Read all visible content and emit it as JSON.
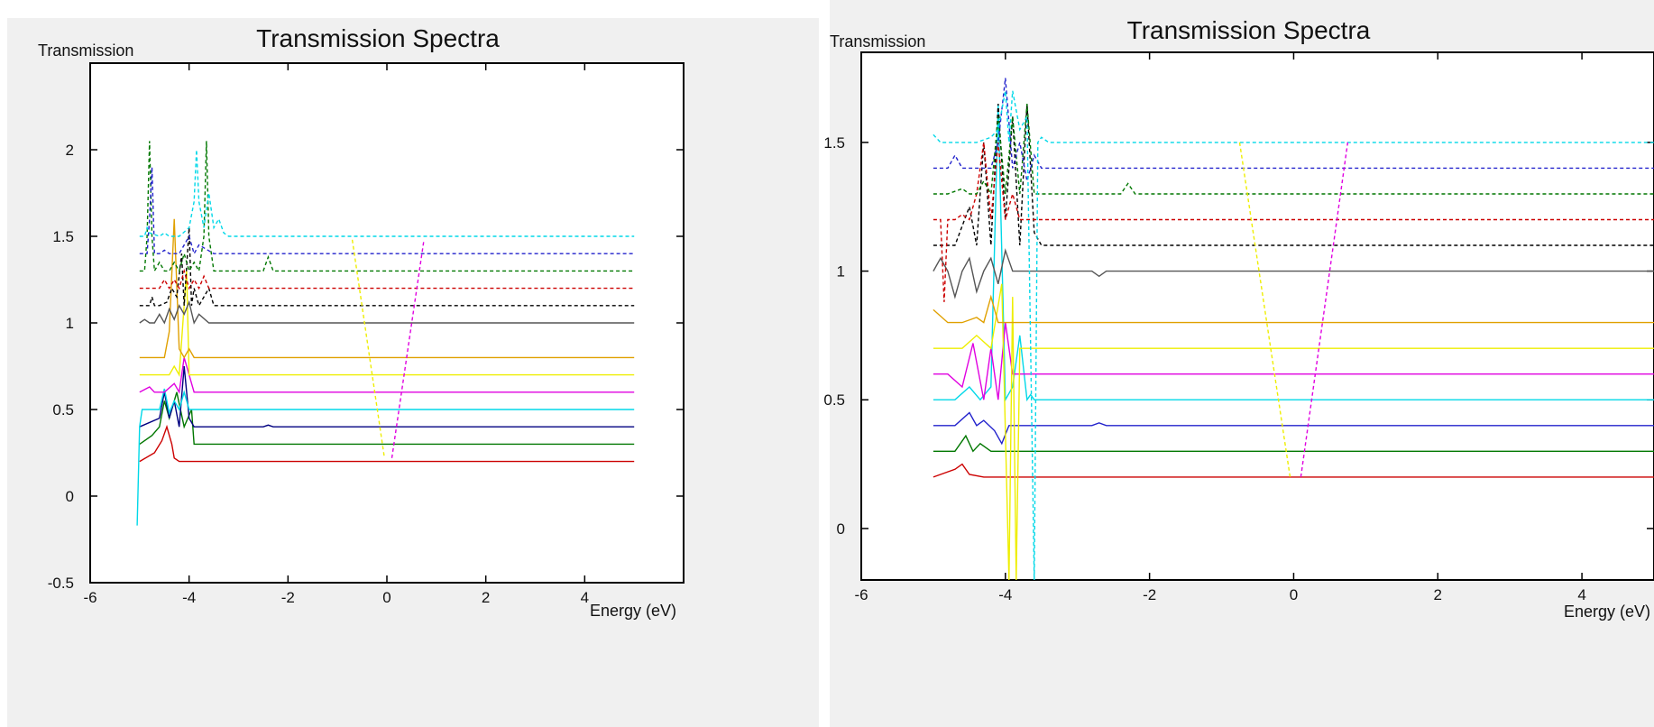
{
  "chart_data": [
    {
      "type": "line",
      "title": "Transmission Spectra",
      "ylabel": "Transmission",
      "xlabel": "Energy (eV)",
      "xlim": [
        -6,
        6
      ],
      "ylim": [
        -0.5,
        2.5
      ],
      "xticks": [
        -6,
        -4,
        -2,
        0,
        2,
        4
      ],
      "yticks": [
        -0.5,
        0,
        0.5,
        1,
        1.5,
        2
      ],
      "xtick_labels": [
        "-6",
        "-4",
        "-2",
        "0",
        "2",
        "4"
      ],
      "ytick_labels": [
        "-0.5",
        "0",
        "0.5",
        "1",
        "1.5",
        "2"
      ],
      "series": [
        {
          "color": "#cc0000",
          "dashed": false,
          "x": [
            -5.0,
            -4.7,
            -4.55,
            -4.45,
            -4.35,
            -4.3,
            -4.2,
            5.0
          ],
          "y": [
            0.2,
            0.25,
            0.32,
            0.4,
            0.3,
            0.22,
            0.2,
            0.2
          ]
        },
        {
          "color": "#007700",
          "dashed": false,
          "x": [
            -5.0,
            -4.75,
            -4.6,
            -4.5,
            -4.4,
            -4.25,
            -4.1,
            -3.95,
            -3.9,
            5.0
          ],
          "y": [
            0.3,
            0.35,
            0.4,
            0.55,
            0.45,
            0.6,
            0.4,
            0.5,
            0.3,
            0.3
          ]
        },
        {
          "color": "#000080",
          "dashed": false,
          "x": [
            -5.0,
            -4.6,
            -4.5,
            -4.4,
            -4.3,
            -4.2,
            -4.1,
            -4.0,
            -3.9,
            -2.5,
            -2.4,
            -2.3,
            5.0
          ],
          "y": [
            0.4,
            0.45,
            0.6,
            0.45,
            0.55,
            0.4,
            0.75,
            0.45,
            0.4,
            0.4,
            0.41,
            0.4,
            0.4
          ]
        },
        {
          "color": "#00d8e8",
          "dashed": false,
          "x": [
            -5.05,
            -5.0,
            -4.95,
            -4.6,
            -4.5,
            -4.4,
            -4.3,
            -4.2,
            -4.1,
            -4.0,
            -3.9,
            -3.85,
            5.0
          ],
          "y": [
            -0.17,
            0.4,
            0.5,
            0.5,
            0.62,
            0.48,
            0.55,
            0.5,
            0.6,
            0.5,
            0.5,
            0.5,
            0.5
          ]
        },
        {
          "color": "#e000e0",
          "dashed": false,
          "x": [
            -5.0,
            -4.8,
            -4.7,
            -4.5,
            -4.3,
            -4.2,
            -4.1,
            -3.9,
            5.0
          ],
          "y": [
            0.6,
            0.63,
            0.6,
            0.6,
            0.65,
            0.6,
            0.8,
            0.6,
            0.6
          ]
        },
        {
          "color": "#eeee00",
          "dashed": false,
          "x": [
            -5.0,
            -4.4,
            -4.3,
            -4.2,
            -4.05,
            -4.0,
            -3.95,
            5.0
          ],
          "y": [
            0.7,
            0.7,
            0.75,
            0.7,
            1.3,
            0.7,
            0.7,
            0.7
          ]
        },
        {
          "color": "#e0a000",
          "dashed": false,
          "x": [
            -5.0,
            -4.5,
            -4.4,
            -4.3,
            -4.2,
            -4.1,
            -4.0,
            -3.9,
            5.0
          ],
          "y": [
            0.8,
            0.8,
            0.95,
            1.6,
            0.85,
            0.8,
            0.85,
            0.8,
            0.8
          ]
        },
        {
          "color": "#555555",
          "dashed": false,
          "x": [
            -5.0,
            -4.9,
            -4.8,
            -4.7,
            -4.6,
            -4.5,
            -4.4,
            -4.3,
            -4.2,
            -4.1,
            -4.0,
            -3.9,
            -3.8,
            -3.6,
            -2.5,
            5.0
          ],
          "y": [
            1.0,
            1.02,
            1.0,
            1.0,
            1.05,
            1.0,
            1.08,
            1.02,
            1.1,
            1.05,
            1.12,
            1.0,
            1.05,
            1.0,
            1.0,
            1.0
          ]
        },
        {
          "color": "#000000",
          "dashed": true,
          "x": [
            -5.0,
            -4.8,
            -4.75,
            -4.7,
            -4.6,
            -4.45,
            -4.35,
            -4.25,
            -4.15,
            -4.1,
            -4.0,
            -3.95,
            -3.9,
            -3.8,
            -3.7,
            -3.6,
            -3.5,
            -3.4,
            5.0
          ],
          "y": [
            1.1,
            1.1,
            1.15,
            1.1,
            1.1,
            1.12,
            1.2,
            1.15,
            1.4,
            1.1,
            1.55,
            1.1,
            1.2,
            1.1,
            1.15,
            1.2,
            1.1,
            1.1,
            1.1
          ]
        },
        {
          "color": "#cc0000",
          "dashed": true,
          "x": [
            -5.0,
            -4.6,
            -4.5,
            -4.4,
            -4.3,
            -4.2,
            -4.1,
            -4.0,
            -3.9,
            -3.8,
            -3.7,
            -3.6,
            -3.5,
            5.0
          ],
          "y": [
            1.2,
            1.2,
            1.25,
            1.2,
            1.25,
            1.2,
            1.3,
            1.2,
            1.25,
            1.2,
            1.27,
            1.2,
            1.2,
            1.2
          ]
        },
        {
          "color": "#007700",
          "dashed": true,
          "x": [
            -5.0,
            -4.9,
            -4.85,
            -4.8,
            -4.75,
            -4.7,
            -4.6,
            -4.5,
            -4.4,
            -4.3,
            -4.2,
            -4.1,
            -4.0,
            -3.9,
            -3.8,
            -3.7,
            -3.65,
            -3.6,
            -3.5,
            -2.5,
            -2.4,
            -2.3,
            5.0
          ],
          "y": [
            1.3,
            1.3,
            1.5,
            2.05,
            1.5,
            1.3,
            1.35,
            1.3,
            1.3,
            1.35,
            1.3,
            1.4,
            1.3,
            1.35,
            1.3,
            1.5,
            2.05,
            1.5,
            1.3,
            1.3,
            1.38,
            1.3,
            1.3
          ]
        },
        {
          "color": "#2222cc",
          "dashed": true,
          "x": [
            -5.0,
            -4.85,
            -4.8,
            -4.75,
            -4.7,
            -4.6,
            -4.5,
            -4.4,
            -4.2,
            -4.1,
            -4.0,
            -3.9,
            -3.8,
            -3.5,
            5.0
          ],
          "y": [
            1.4,
            1.4,
            1.6,
            1.9,
            1.4,
            1.4,
            1.42,
            1.4,
            1.4,
            1.45,
            1.5,
            1.4,
            1.45,
            1.4,
            1.4
          ]
        },
        {
          "color": "#00d8e8",
          "dashed": true,
          "x": [
            -5.0,
            -4.9,
            -4.85,
            -4.8,
            -4.6,
            -4.5,
            -4.4,
            -4.2,
            -4.0,
            -3.9,
            -3.85,
            -3.8,
            -3.7,
            -3.6,
            -3.5,
            -3.4,
            -3.3,
            -3.2,
            5.0
          ],
          "y": [
            1.5,
            1.5,
            1.55,
            1.52,
            1.5,
            1.52,
            1.5,
            1.5,
            1.55,
            1.7,
            2.0,
            1.7,
            1.55,
            1.75,
            1.55,
            1.6,
            1.52,
            1.5,
            1.5
          ]
        },
        {
          "color": "#eeee00",
          "dashed": true,
          "x": [
            -0.7,
            -0.05
          ],
          "y": [
            1.48,
            0.22
          ]
        },
        {
          "color": "#e000e0",
          "dashed": true,
          "x": [
            0.1,
            0.75
          ],
          "y": [
            0.22,
            1.48
          ]
        }
      ]
    },
    {
      "type": "line",
      "title": "Transmission Spectra",
      "ylabel": "Transmission",
      "xlabel": "Energy (eV)",
      "xlim": [
        -6,
        5
      ],
      "ylim": [
        -0.2,
        1.85
      ],
      "xticks": [
        -6,
        -4,
        -2,
        0,
        2,
        4
      ],
      "yticks": [
        0,
        0.5,
        1,
        1.5
      ],
      "xtick_labels": [
        "-6",
        "-4",
        "-2",
        "0",
        "2",
        "4"
      ],
      "ytick_labels": [
        "0",
        "0.5",
        "1",
        "1.5"
      ],
      "series": [
        {
          "color": "#cc0000",
          "dashed": false,
          "x": [
            -5.0,
            -4.7,
            -4.6,
            -4.5,
            -4.3,
            -4.2,
            5.0
          ],
          "y": [
            0.2,
            0.23,
            0.25,
            0.21,
            0.2,
            0.2,
            0.2
          ]
        },
        {
          "color": "#007700",
          "dashed": false,
          "x": [
            -5.0,
            -4.7,
            -4.55,
            -4.45,
            -4.35,
            -4.2,
            -4.0,
            -3.9,
            5.0
          ],
          "y": [
            0.3,
            0.3,
            0.36,
            0.3,
            0.33,
            0.3,
            0.3,
            0.3,
            0.3
          ]
        },
        {
          "color": "#2222cc",
          "dashed": false,
          "x": [
            -5.0,
            -4.7,
            -4.5,
            -4.4,
            -4.3,
            -4.15,
            -4.05,
            -3.95,
            -3.85,
            -2.8,
            -2.7,
            -2.6,
            5.0
          ],
          "y": [
            0.4,
            0.4,
            0.45,
            0.4,
            0.42,
            0.38,
            0.33,
            0.4,
            0.4,
            0.4,
            0.41,
            0.4,
            0.4
          ]
        },
        {
          "color": "#00d8e8",
          "dashed": false,
          "x": [
            -5.0,
            -4.7,
            -4.5,
            -4.35,
            -4.2,
            -4.1,
            -4.0,
            -3.9,
            -3.8,
            -3.7,
            -3.65,
            -3.6,
            5.0
          ],
          "y": [
            0.5,
            0.5,
            0.55,
            0.5,
            0.55,
            1.65,
            0.5,
            0.55,
            0.75,
            0.5,
            0.52,
            0.5,
            0.5
          ]
        },
        {
          "color": "#e000e0",
          "dashed": false,
          "x": [
            -5.0,
            -4.8,
            -4.6,
            -4.45,
            -4.3,
            -4.2,
            -4.1,
            -4.0,
            -3.9,
            -3.8,
            5.0
          ],
          "y": [
            0.6,
            0.6,
            0.55,
            0.72,
            0.5,
            0.7,
            0.5,
            0.8,
            0.6,
            0.6,
            0.6
          ]
        },
        {
          "color": "#eeee00",
          "dashed": false,
          "x": [
            -5.0,
            -4.6,
            -4.4,
            -4.2,
            -4.05,
            -3.95,
            -3.9,
            -3.85,
            -3.8,
            -3.7,
            5.0
          ],
          "y": [
            0.7,
            0.7,
            0.75,
            0.7,
            0.95,
            -0.2,
            0.9,
            -0.2,
            0.7,
            0.7,
            0.7
          ]
        },
        {
          "color": "#e0a000",
          "dashed": false,
          "x": [
            -5.0,
            -4.8,
            -4.6,
            -4.4,
            -4.3,
            -4.2,
            -4.1,
            -4.0,
            -3.9,
            -3.8,
            5.0
          ],
          "y": [
            0.85,
            0.8,
            0.8,
            0.82,
            0.8,
            0.9,
            0.8,
            0.8,
            0.8,
            0.8,
            0.8
          ]
        },
        {
          "color": "#555555",
          "dashed": false,
          "x": [
            -5.0,
            -4.9,
            -4.8,
            -4.7,
            -4.6,
            -4.5,
            -4.4,
            -4.3,
            -4.2,
            -4.1,
            -4.0,
            -3.9,
            -3.7,
            -2.8,
            -2.7,
            -2.6,
            5.0
          ],
          "y": [
            1.0,
            1.05,
            1.0,
            0.9,
            1.0,
            1.05,
            0.92,
            1.0,
            1.05,
            0.95,
            1.08,
            1.0,
            1.0,
            1.0,
            0.98,
            1.0,
            1.0
          ]
        },
        {
          "color": "#000000",
          "dashed": true,
          "x": [
            -5.0,
            -4.7,
            -4.5,
            -4.4,
            -4.3,
            -4.2,
            -4.1,
            -4.0,
            -3.9,
            -3.8,
            -3.7,
            -3.6,
            -3.5,
            5.0
          ],
          "y": [
            1.1,
            1.1,
            1.25,
            1.1,
            1.5,
            1.1,
            1.65,
            1.2,
            1.6,
            1.1,
            1.65,
            1.15,
            1.1,
            1.1
          ]
        },
        {
          "color": "#cc0000",
          "dashed": true,
          "x": [
            -5.0,
            -4.9,
            -4.85,
            -4.8,
            -4.7,
            -4.6,
            -4.5,
            -4.4,
            -4.3,
            -4.2,
            -4.1,
            -4.0,
            -3.9,
            -3.8,
            -3.7,
            5.0
          ],
          "y": [
            1.2,
            1.2,
            0.88,
            1.2,
            1.2,
            1.22,
            1.2,
            1.3,
            1.5,
            1.2,
            1.5,
            1.2,
            1.3,
            1.2,
            1.2,
            1.2
          ]
        },
        {
          "color": "#007700",
          "dashed": true,
          "x": [
            -5.0,
            -4.8,
            -4.6,
            -4.5,
            -4.4,
            -4.3,
            -4.2,
            -4.1,
            -4.0,
            -3.9,
            -3.8,
            -3.7,
            -3.6,
            -3.5,
            -2.4,
            -2.3,
            -2.2,
            5.0
          ],
          "y": [
            1.3,
            1.3,
            1.32,
            1.3,
            1.3,
            1.35,
            1.3,
            1.6,
            1.3,
            1.6,
            1.3,
            1.65,
            1.3,
            1.3,
            1.3,
            1.34,
            1.3,
            1.3
          ]
        },
        {
          "color": "#2222cc",
          "dashed": true,
          "x": [
            -5.0,
            -4.8,
            -4.7,
            -4.6,
            -4.4,
            -4.2,
            -4.1,
            -4.0,
            -3.9,
            -3.8,
            -3.7,
            -3.6,
            -3.5,
            5.0
          ],
          "y": [
            1.4,
            1.4,
            1.45,
            1.4,
            1.4,
            1.4,
            1.5,
            1.75,
            1.4,
            1.5,
            1.35,
            1.45,
            1.4,
            1.4
          ]
        },
        {
          "color": "#00d8e8",
          "dashed": true,
          "x": [
            -5.0,
            -4.9,
            -4.8,
            -4.6,
            -4.4,
            -4.2,
            -4.1,
            -4.0,
            -3.95,
            -3.9,
            -3.8,
            -3.7,
            -3.6,
            -3.55,
            -3.5,
            -3.4,
            -3.3,
            5.0
          ],
          "y": [
            1.53,
            1.5,
            1.5,
            1.5,
            1.5,
            1.52,
            1.55,
            1.7,
            1.5,
            1.7,
            1.55,
            1.6,
            -0.2,
            1.5,
            1.52,
            1.5,
            1.5,
            1.5
          ]
        },
        {
          "color": "#eeee00",
          "dashed": true,
          "x": [
            -0.75,
            -0.05
          ],
          "y": [
            1.5,
            0.2
          ]
        },
        {
          "color": "#e000e0",
          "dashed": true,
          "x": [
            0.1,
            0.75
          ],
          "y": [
            0.2,
            1.5
          ]
        }
      ]
    }
  ]
}
